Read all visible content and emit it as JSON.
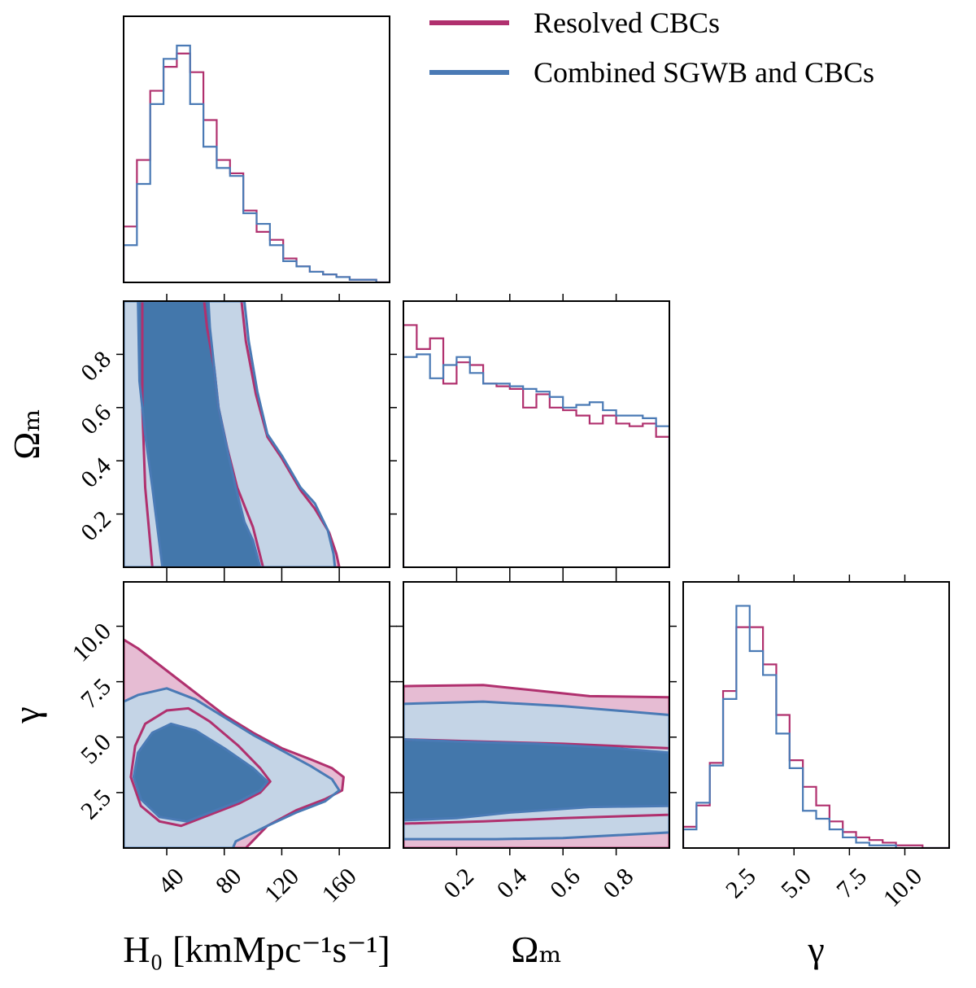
{
  "chart_data": {
    "type": "corner",
    "legend": {
      "position": "upper right",
      "entries": [
        {
          "name": "Resolved CBCs",
          "color": "#b0306e",
          "fills": [
            "#e6bcd3",
            null
          ]
        },
        {
          "name": "Combined SGWB and CBCs",
          "color": "#4a7ab5",
          "fills": [
            "#c4d4e6",
            "#4377ab"
          ]
        }
      ]
    },
    "panels": [
      {
        "type": "histogram",
        "xlim": [
          10,
          195
        ],
        "ylim": [
          0,
          1
        ],
        "bins": [
          10,
          19.25,
          28.5,
          37.75,
          47,
          56.25,
          65.5,
          74.75,
          84,
          93.25,
          102.5,
          111.75,
          121,
          130.25,
          139.5,
          148.75,
          158,
          167.25,
          176.5,
          185.75,
          195
        ],
        "series": [
          {
            "values": [
              0.21,
              0.46,
              0.72,
              0.81,
              0.86,
              0.79,
              0.61,
              0.46,
              0.41,
              0.27,
              0.19,
              0.16,
              0.09,
              0.06,
              0.04,
              0.03,
              0.02,
              0.01,
              0.01,
              0.0
            ]
          },
          {
            "values": [
              0.14,
              0.37,
              0.67,
              0.84,
              0.89,
              0.67,
              0.51,
              0.43,
              0.4,
              0.26,
              0.22,
              0.14,
              0.08,
              0.06,
              0.04,
              0.03,
              0.02,
              0.01,
              0.01,
              0.0
            ]
          }
        ]
      },
      {
        "type": "contour",
        "ylabel": "Ωₘ",
        "xlim": [
          10,
          195
        ],
        "xticks": [
          40,
          80,
          120,
          160
        ],
        "ylim": [
          0,
          1
        ],
        "yticks": [
          0.2,
          0.4,
          0.6,
          0.8
        ],
        "series": [
          {
            "levels": [
              {
                "x": [
                  10,
                  10,
                  92,
                  95,
                  102,
                  110,
                  120,
                  133,
                  143,
                  153,
                  158,
                  160
                ],
                "y": [
                  0,
                  1,
                  1,
                  0.85,
                  0.65,
                  0.49,
                  0.41,
                  0.29,
                  0.22,
                  0.13,
                  0.05,
                  0
                ]
              },
              {
                "x": [
                  23,
                  23,
                  25,
                  30,
                  107,
                  100,
                  89,
                  82,
                  76,
                  73,
                  68,
                  66
                ],
                "y": [
                  1,
                  0.6,
                  0.3,
                  0,
                  0,
                  0.15,
                  0.3,
                  0.45,
                  0.6,
                  0.75,
                  0.9,
                  1
                ]
              }
            ]
          },
          {
            "levels": [
              {
                "x": [
                  10,
                  10,
                  94,
                  97,
                  103,
                  110,
                  120,
                  133,
                  143,
                  152,
                  156,
                  157
                ],
                "y": [
                  0,
                  1,
                  1,
                  0.85,
                  0.66,
                  0.5,
                  0.42,
                  0.3,
                  0.24,
                  0.14,
                  0.05,
                  0
                ]
              },
              {
                "x": [
                  20,
                  21,
                  25,
                  30,
                  37,
                  105,
                  100,
                  94,
                  88,
                  83,
                  76,
                  73,
                  70,
                  69
                ],
                "y": [
                  1,
                  0.7,
                  0.5,
                  0.3,
                  0,
                  0,
                  0.1,
                  0.17,
                  0.3,
                  0.42,
                  0.6,
                  0.75,
                  0.9,
                  1
                ]
              }
            ]
          }
        ]
      },
      {
        "type": "histogram",
        "xlim": [
          0,
          1
        ],
        "xticks": [
          0.2,
          0.4,
          0.6,
          0.8
        ],
        "ylim": [
          0,
          1
        ],
        "bins": [
          0,
          0.05,
          0.1,
          0.15,
          0.2,
          0.25,
          0.3,
          0.35,
          0.4,
          0.45,
          0.5,
          0.55,
          0.6,
          0.65,
          0.7,
          0.75,
          0.8,
          0.85,
          0.9,
          0.95,
          1.0
        ],
        "series": [
          {
            "values": [
              0.91,
              0.82,
              0.86,
              0.69,
              0.77,
              0.76,
              0.69,
              0.68,
              0.67,
              0.6,
              0.65,
              0.6,
              0.59,
              0.57,
              0.54,
              0.57,
              0.54,
              0.53,
              0.54,
              0.49
            ]
          },
          {
            "values": [
              0.79,
              0.8,
              0.71,
              0.76,
              0.79,
              0.73,
              0.69,
              0.69,
              0.68,
              0.67,
              0.66,
              0.64,
              0.6,
              0.61,
              0.62,
              0.59,
              0.57,
              0.57,
              0.56,
              0.53
            ]
          }
        ]
      },
      {
        "type": "contour",
        "xlabel": "H₀ [kmMpc⁻¹s⁻¹]",
        "ylabel": "γ",
        "xlim": [
          10,
          195
        ],
        "xticks": [
          40,
          80,
          120,
          160
        ],
        "ylim": [
          0,
          12
        ],
        "yticks": [
          2.5,
          {
            "value": 5,
            "label": "5.0"
          },
          7.5,
          {
            "value": 10,
            "label": "10.0"
          }
        ],
        "series": [
          {
            "levels": [
              {
                "x": [
                  10,
                  20,
                  40,
                  60,
                  80,
                  100,
                  120,
                  140,
                  155,
                  163,
                  162,
                  150,
                  130,
                  110,
                  95,
                  10
                ],
                "y": [
                  9.4,
                  9.0,
                  8.0,
                  7.0,
                  6.0,
                  5.2,
                  4.5,
                  4.0,
                  3.6,
                  3.2,
                  2.6,
                  2.2,
                  1.7,
                  1.0,
                  0,
                  0
                ]
              },
              {
                "x": [
                  15,
                  18,
                  25,
                  40,
                  55,
                  70,
                  90,
                  105,
                  112,
                  105,
                  90,
                  70,
                  50,
                  35,
                  22
                ],
                "y": [
                  3.2,
                  4.6,
                  5.6,
                  6.2,
                  6.3,
                  5.7,
                  4.6,
                  3.6,
                  3.0,
                  2.5,
                  2.0,
                  1.5,
                  1.0,
                  1.2,
                  1.9
                ]
              }
            ]
          },
          {
            "levels": [
              {
                "x": [
                  10,
                  20,
                  40,
                  60,
                  80,
                  100,
                  120,
                  140,
                  155,
                  160,
                  150,
                  130,
                  110,
                  88,
                  86,
                  10
                ],
                "y": [
                  6.6,
                  6.9,
                  7.2,
                  6.7,
                  5.9,
                  5.1,
                  4.4,
                  3.7,
                  3.1,
                  2.6,
                  2.1,
                  1.6,
                  1.0,
                  0.3,
                  0,
                  0
                ]
              },
              {
                "x": [
                  17,
                  20,
                  30,
                  43,
                  60,
                  80,
                  100,
                  110,
                  105,
                  90,
                  70,
                  54,
                  35,
                  22
                ],
                "y": [
                  3.2,
                  4.3,
                  5.2,
                  5.6,
                  5.3,
                  4.5,
                  3.6,
                  3.0,
                  2.6,
                  2.1,
                  1.6,
                  1.2,
                  1.4,
                  2.2
                ]
              }
            ]
          }
        ]
      },
      {
        "type": "contour",
        "xlabel": "Ωₘ",
        "xlim": [
          0,
          1
        ],
        "xticks": [
          0.2,
          0.4,
          0.6,
          0.8
        ],
        "ylim": [
          0,
          12
        ],
        "yticks": [
          2.5,
          5,
          7.5,
          10
        ],
        "series": [
          {
            "levels": [
              {
                "x": [
                  0,
                  0.3,
                  0.5,
                  0.7,
                  1,
                  1,
                  0
                ],
                "y": [
                  7.3,
                  7.35,
                  7.1,
                  6.85,
                  6.8,
                  0,
                  0
                ]
              },
              {
                "x": [
                  0,
                  0.3,
                  0.6,
                  1,
                  1,
                  0.6,
                  0.3,
                  0
                ],
                "y": [
                  4.9,
                  4.8,
                  4.7,
                  4.5,
                  1.5,
                  1.35,
                  1.2,
                  1.1
                ]
              }
            ]
          },
          {
            "levels": [
              {
                "x": [
                  0,
                  0.3,
                  0.6,
                  1,
                  1,
                  0.6,
                  0.35,
                  0
                ],
                "y": [
                  6.5,
                  6.6,
                  6.4,
                  6.0,
                  0.7,
                  0.45,
                  0.4,
                  0.4
                ]
              },
              {
                "x": [
                  0,
                  0.2,
                  0.5,
                  0.8,
                  1,
                  1,
                  0.7,
                  0.4,
                  0.2,
                  0
                ],
                "y": [
                  4.9,
                  4.8,
                  4.7,
                  4.5,
                  4.3,
                  1.9,
                  1.85,
                  1.6,
                  1.35,
                  1.25
                ]
              }
            ]
          }
        ]
      },
      {
        "type": "histogram",
        "xlabel": "γ",
        "xlim": [
          0,
          12
        ],
        "xticks": [
          2.5,
          {
            "value": 5,
            "label": "5.0"
          },
          7.5,
          {
            "value": 10,
            "label": "10.0"
          }
        ],
        "ylim": [
          0,
          1
        ],
        "bins": [
          0,
          0.6,
          1.2,
          1.8,
          2.4,
          3.0,
          3.6,
          4.2,
          4.8,
          5.4,
          6.0,
          6.6,
          7.2,
          7.8,
          8.4,
          9.0,
          9.6,
          10.2,
          10.8,
          11.4,
          12.0
        ],
        "series": [
          {
            "values": [
              0.08,
              0.16,
              0.32,
              0.59,
              0.83,
              0.83,
              0.69,
              0.5,
              0.33,
              0.23,
              0.16,
              0.1,
              0.06,
              0.04,
              0.03,
              0.02,
              0.01,
              0.01,
              0.0,
              0.0
            ]
          },
          {
            "values": [
              0.07,
              0.17,
              0.31,
              0.56,
              0.91,
              0.74,
              0.65,
              0.43,
              0.3,
              0.14,
              0.11,
              0.07,
              0.04,
              0.02,
              0.01,
              0.01,
              0.0,
              0.0,
              0.0,
              0.0
            ]
          }
        ]
      }
    ]
  }
}
